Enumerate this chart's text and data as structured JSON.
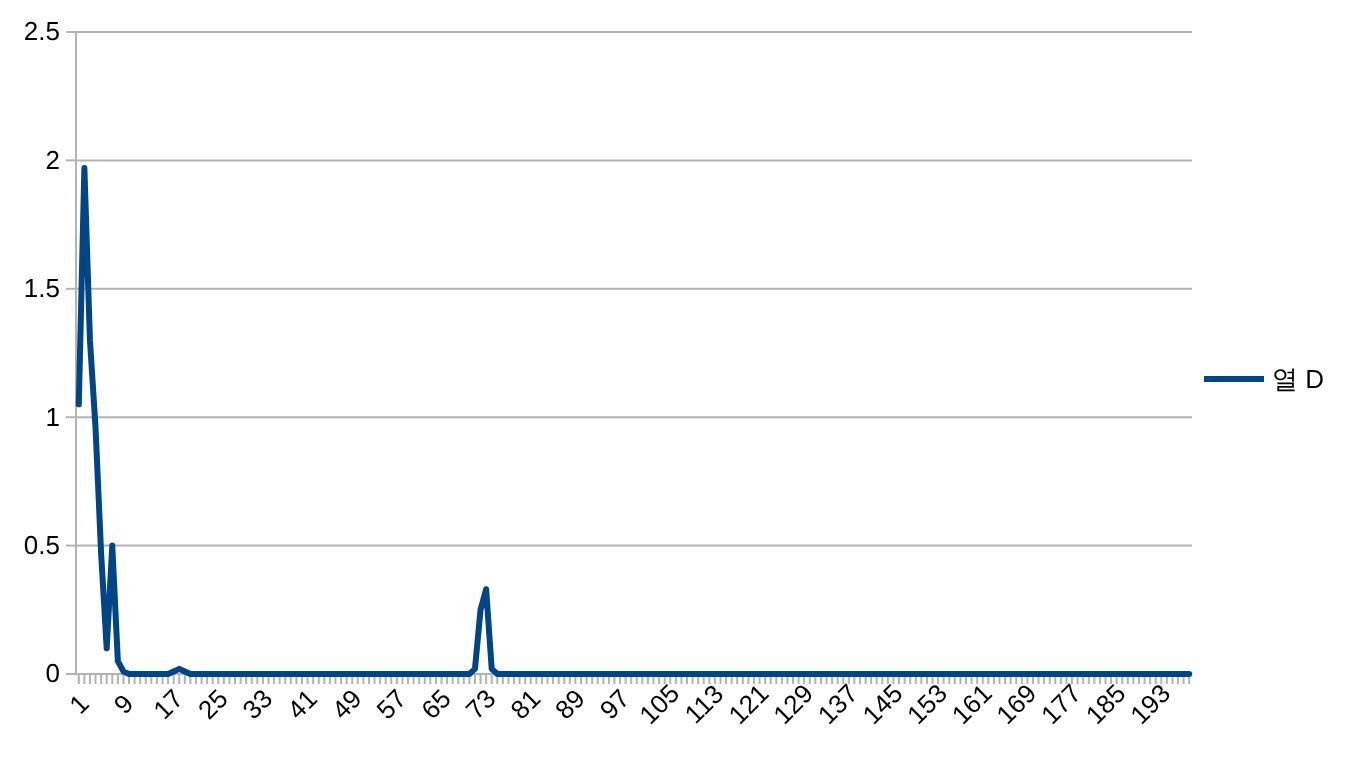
{
  "chart_data": {
    "type": "line",
    "categories": [
      "1",
      null,
      null,
      null,
      null,
      null,
      null,
      null,
      "9",
      null,
      null,
      null,
      null,
      null,
      null,
      null,
      "17",
      null,
      null,
      null,
      null,
      null,
      null,
      null,
      "25",
      null,
      null,
      null,
      null,
      null,
      null,
      null,
      "33",
      null,
      null,
      null,
      null,
      null,
      null,
      null,
      "41",
      null,
      null,
      null,
      null,
      null,
      null,
      null,
      "49",
      null,
      null,
      null,
      null,
      null,
      null,
      null,
      "57",
      null,
      null,
      null,
      null,
      null,
      null,
      null,
      "65",
      null,
      null,
      null,
      null,
      null,
      null,
      null,
      "73",
      null,
      null,
      null,
      null,
      null,
      null,
      null,
      "81",
      null,
      null,
      null,
      null,
      null,
      null,
      null,
      "89",
      null,
      null,
      null,
      null,
      null,
      null,
      null,
      "97",
      null,
      null,
      null,
      null,
      null,
      null,
      null,
      "105",
      null,
      null,
      null,
      null,
      null,
      null,
      null,
      "113",
      null,
      null,
      null,
      null,
      null,
      null,
      null,
      "121",
      null,
      null,
      null,
      null,
      null,
      null,
      null,
      "129",
      null,
      null,
      null,
      null,
      null,
      null,
      null,
      "137",
      null,
      null,
      null,
      null,
      null,
      null,
      null,
      "145",
      null,
      null,
      null,
      null,
      null,
      null,
      null,
      "153",
      null,
      null,
      null,
      null,
      null,
      null,
      null,
      "161",
      null,
      null,
      null,
      null,
      null,
      null,
      null,
      "169",
      null,
      null,
      null,
      null,
      null,
      null,
      null,
      "177",
      null,
      null,
      null,
      null,
      null,
      null,
      null,
      "185",
      null,
      null,
      null,
      null,
      null,
      null,
      null,
      "193",
      null,
      null,
      null,
      null,
      null,
      null,
      null
    ],
    "series": [
      {
        "name": "열 D",
        "color": "#004586",
        "values": [
          1.05,
          1.97,
          1.3,
          0.96,
          0.47,
          0.1,
          0.5,
          0.05,
          0.01,
          0,
          0,
          0,
          0,
          0,
          0,
          0,
          0,
          0.01,
          0.02,
          0.01,
          0,
          0,
          0,
          0,
          0,
          0,
          0,
          0,
          0,
          0,
          0,
          0,
          0,
          0,
          0,
          0,
          0,
          0,
          0,
          0,
          0,
          0,
          0,
          0,
          0,
          0,
          0,
          0,
          0,
          0,
          0,
          0,
          0,
          0,
          0,
          0,
          0,
          0,
          0,
          0,
          0,
          0,
          0,
          0,
          0,
          0,
          0,
          0,
          0,
          0,
          0,
          0.02,
          0.25,
          0.33,
          0.02,
          0,
          0,
          0,
          0,
          0,
          0,
          0,
          0,
          0,
          0,
          0,
          0,
          0,
          0,
          0,
          0,
          0,
          0,
          0,
          0,
          0,
          0,
          0,
          0,
          0,
          0,
          0,
          0,
          0,
          0,
          0,
          0,
          0,
          0,
          0,
          0,
          0,
          0,
          0,
          0,
          0,
          0,
          0,
          0,
          0,
          0,
          0,
          0,
          0,
          0,
          0,
          0,
          0,
          0,
          0,
          0,
          0,
          0,
          0,
          0,
          0,
          0,
          0,
          0,
          0,
          0,
          0,
          0,
          0,
          0,
          0,
          0,
          0,
          0,
          0,
          0,
          0,
          0,
          0,
          0,
          0,
          0,
          0,
          0,
          0,
          0,
          0,
          0,
          0,
          0,
          0,
          0,
          0,
          0,
          0,
          0,
          0,
          0,
          0,
          0,
          0,
          0,
          0,
          0,
          0,
          0,
          0,
          0,
          0,
          0,
          0,
          0,
          0,
          0,
          0,
          0,
          0,
          0,
          0,
          0,
          0,
          0,
          0,
          0,
          0
        ]
      }
    ],
    "ylim": [
      0,
      2.5
    ],
    "yticks": [
      0,
      0.5,
      1,
      1.5,
      2,
      2.5
    ],
    "grid": "y",
    "legend": "right"
  }
}
